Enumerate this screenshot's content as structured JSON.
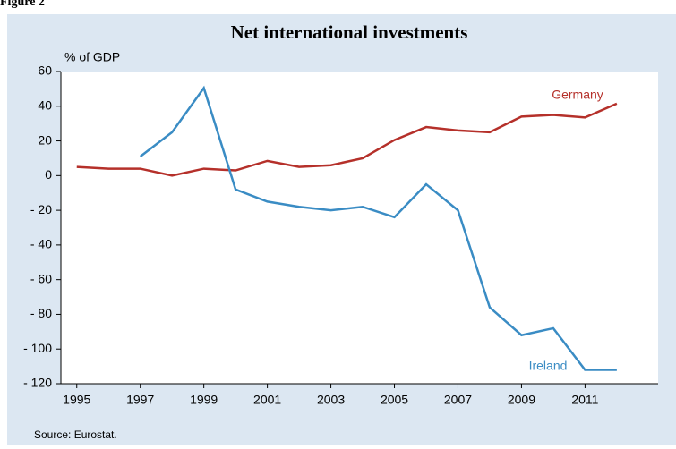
{
  "figure_label": "Figure 2",
  "source": "Source: Eurostat.",
  "chart_data": {
    "type": "line",
    "title": "Net international investments",
    "y_label": "% of GDP",
    "x": [
      1995,
      1996,
      1997,
      1998,
      1999,
      2000,
      2001,
      2002,
      2003,
      2004,
      2005,
      2006,
      2007,
      2008,
      2009,
      2010,
      2011,
      2012
    ],
    "series": [
      {
        "name": "Germany",
        "color": "#b5302a",
        "values": [
          5,
          4,
          4,
          0,
          4,
          3,
          8.5,
          5,
          6,
          10,
          20.5,
          28,
          26,
          25,
          34,
          35,
          33.5,
          41.5
        ]
      },
      {
        "name": "Ireland",
        "color": "#3a8cc4",
        "values": [
          null,
          null,
          11,
          25,
          50.5,
          -8,
          -15,
          -18,
          -20,
          -18,
          -24,
          -5,
          -20,
          -76,
          -92,
          -88,
          -112,
          -112
        ]
      }
    ],
    "xlim": [
      1994.5,
      2013.3
    ],
    "xticks": [
      1995,
      1997,
      1999,
      2001,
      2003,
      2005,
      2007,
      2009,
      2011
    ],
    "ylim": [
      -120,
      60
    ],
    "yticks": [
      60,
      40,
      20,
      0,
      {
        "value": -20,
        "label": "- 20"
      },
      {
        "value": -40,
        "label": "- 40"
      },
      {
        "value": -60,
        "label": "- 60"
      },
      {
        "value": -80,
        "label": "- 80"
      },
      {
        "value": -100,
        "label": "- 100"
      },
      {
        "value": -120,
        "label": "- 120"
      }
    ],
    "grid": false
  }
}
